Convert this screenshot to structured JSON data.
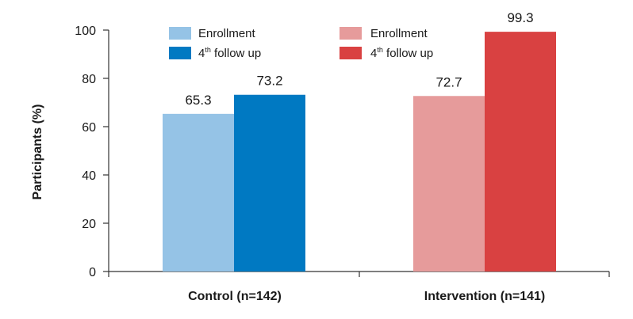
{
  "chart_data": {
    "type": "bar",
    "title": "",
    "xlabel": "",
    "ylabel": "Participants (%)",
    "ylim": [
      0,
      100
    ],
    "yticks": [
      0,
      20,
      40,
      60,
      80,
      100
    ],
    "grid": false,
    "categories": [
      "Control (n=142)",
      "Intervention (n=141)"
    ],
    "series": [
      {
        "name": "Control – Enrollment",
        "category": "Control (n=142)",
        "legend_text": "Enrollment",
        "legend_sup": "",
        "color": "#95c3e6",
        "value": 65.3,
        "label": "65.3"
      },
      {
        "name": "Control – 4th follow up",
        "category": "Control (n=142)",
        "legend_text": "4",
        "legend_sup": "th",
        "legend_suffix": " follow up",
        "color": "#0079c2",
        "value": 73.2,
        "label": "73.2"
      },
      {
        "name": "Intervention – Enrollment",
        "category": "Intervention (n=141)",
        "legend_text": "Enrollment",
        "legend_sup": "",
        "color": "#e69b9b",
        "value": 72.7,
        "label": "72.7"
      },
      {
        "name": "Intervention – 4th follow up",
        "category": "Intervention (n=141)",
        "legend_text": "4",
        "legend_sup": "th",
        "legend_suffix": " follow up",
        "color": "#d94141",
        "value": 99.3,
        "label": "99.3"
      }
    ]
  }
}
